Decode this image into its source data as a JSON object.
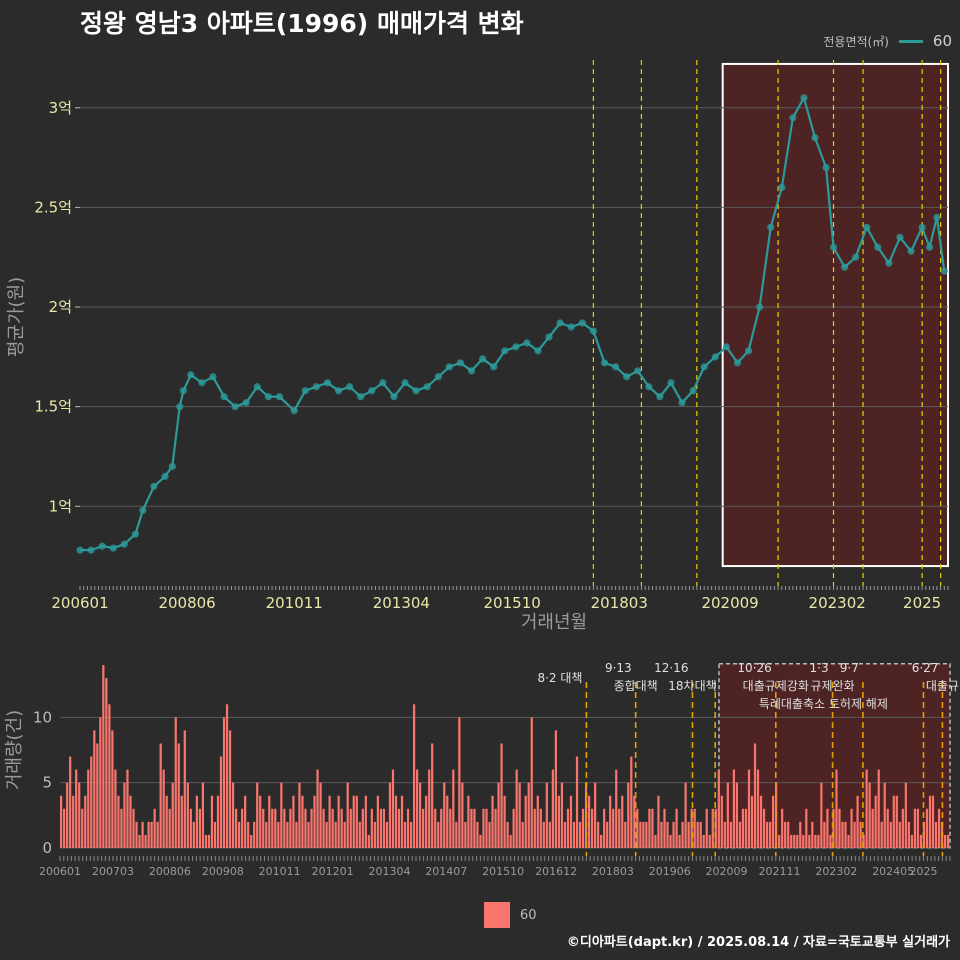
{
  "title": "정왕 영남3 아파트(1996) 매매가격 변화",
  "legend": {
    "title": "전용면적(㎡)",
    "series_label": "60"
  },
  "credit": "©디아파트(dapt.kr) / 2025.08.14 / 자료=국토교통부 실거래가",
  "colors": {
    "price": "#2d9a9a",
    "volume": "#f8766d",
    "policy": "#e6d200",
    "policy_bottom": "#e69f00",
    "highlight_fill": "#5a2222",
    "background": "#2b2b2b",
    "grid": "#5a5a5a"
  },
  "chart_data": [
    {
      "type": "line",
      "panel": "price",
      "xlabel": "거래년월",
      "ylabel": "평균가(원)",
      "x_ticks": [
        "200601",
        "200806",
        "201011",
        "201304",
        "201510",
        "201803",
        "202009",
        "202302",
        "2025"
      ],
      "y_ticks": [
        {
          "value": 1.0,
          "label": "1억"
        },
        {
          "value": 1.5,
          "label": "1.5억"
        },
        {
          "value": 2.0,
          "label": "2억"
        },
        {
          "value": 2.5,
          "label": "2.5억"
        },
        {
          "value": 3.0,
          "label": "3억"
        }
      ],
      "xlim": [
        "2006-01",
        "2025-08"
      ],
      "ylim": [
        0.6,
        3.3
      ],
      "y_unit": "억",
      "highlight": {
        "from": "2020-07",
        "to": "2025-08",
        "ymin": 0.7,
        "ymax": 3.22
      },
      "policy_lines": [
        "2017-08",
        "2018-09",
        "2019-12",
        "2021-10",
        "2023-01",
        "2023-09",
        "2025-01",
        "2025-06"
      ],
      "series": [
        {
          "name": "60",
          "points": [
            [
              "2006-01",
              0.78
            ],
            [
              "2006-04",
              0.78
            ],
            [
              "2006-07",
              0.8
            ],
            [
              "2006-10",
              0.79
            ],
            [
              "2007-01",
              0.81
            ],
            [
              "2007-04",
              0.86
            ],
            [
              "2007-06",
              0.98
            ],
            [
              "2007-09",
              1.1
            ],
            [
              "2007-12",
              1.15
            ],
            [
              "2008-02",
              1.2
            ],
            [
              "2008-04",
              1.5
            ],
            [
              "2008-05",
              1.58
            ],
            [
              "2008-07",
              1.66
            ],
            [
              "2008-10",
              1.62
            ],
            [
              "2009-01",
              1.65
            ],
            [
              "2009-04",
              1.55
            ],
            [
              "2009-07",
              1.5
            ],
            [
              "2009-10",
              1.52
            ],
            [
              "2010-01",
              1.6
            ],
            [
              "2010-04",
              1.55
            ],
            [
              "2010-07",
              1.55
            ],
            [
              "2010-11",
              1.48
            ],
            [
              "2011-02",
              1.58
            ],
            [
              "2011-05",
              1.6
            ],
            [
              "2011-08",
              1.62
            ],
            [
              "2011-11",
              1.58
            ],
            [
              "2012-02",
              1.6
            ],
            [
              "2012-05",
              1.55
            ],
            [
              "2012-08",
              1.58
            ],
            [
              "2012-11",
              1.62
            ],
            [
              "2013-02",
              1.55
            ],
            [
              "2013-05",
              1.62
            ],
            [
              "2013-08",
              1.58
            ],
            [
              "2013-11",
              1.6
            ],
            [
              "2014-02",
              1.65
            ],
            [
              "2014-05",
              1.7
            ],
            [
              "2014-08",
              1.72
            ],
            [
              "2014-11",
              1.68
            ],
            [
              "2015-02",
              1.74
            ],
            [
              "2015-05",
              1.7
            ],
            [
              "2015-08",
              1.78
            ],
            [
              "2015-11",
              1.8
            ],
            [
              "2016-02",
              1.82
            ],
            [
              "2016-05",
              1.78
            ],
            [
              "2016-08",
              1.85
            ],
            [
              "2016-11",
              1.92
            ],
            [
              "2017-02",
              1.9
            ],
            [
              "2017-05",
              1.92
            ],
            [
              "2017-08",
              1.88
            ],
            [
              "2017-11",
              1.72
            ],
            [
              "2018-02",
              1.7
            ],
            [
              "2018-05",
              1.65
            ],
            [
              "2018-08",
              1.68
            ],
            [
              "2018-11",
              1.6
            ],
            [
              "2019-02",
              1.55
            ],
            [
              "2019-05",
              1.62
            ],
            [
              "2019-08",
              1.52
            ],
            [
              "2019-11",
              1.58
            ],
            [
              "2020-02",
              1.7
            ],
            [
              "2020-05",
              1.75
            ],
            [
              "2020-08",
              1.8
            ],
            [
              "2020-11",
              1.72
            ],
            [
              "2021-02",
              1.78
            ],
            [
              "2021-05",
              2.0
            ],
            [
              "2021-08",
              2.4
            ],
            [
              "2021-11",
              2.6
            ],
            [
              "2022-02",
              2.95
            ],
            [
              "2022-05",
              3.05
            ],
            [
              "2022-08",
              2.85
            ],
            [
              "2022-11",
              2.7
            ],
            [
              "2023-01",
              2.3
            ],
            [
              "2023-04",
              2.2
            ],
            [
              "2023-07",
              2.25
            ],
            [
              "2023-10",
              2.4
            ],
            [
              "2024-01",
              2.3
            ],
            [
              "2024-04",
              2.22
            ],
            [
              "2024-07",
              2.35
            ],
            [
              "2024-10",
              2.28
            ],
            [
              "2025-01",
              2.4
            ],
            [
              "2025-03",
              2.3
            ],
            [
              "2025-05",
              2.45
            ],
            [
              "2025-07",
              2.18
            ]
          ]
        }
      ]
    },
    {
      "type": "bar",
      "panel": "volume",
      "xlabel": "",
      "ylabel": "거래량(건)",
      "x_ticks": [
        "200601",
        "200703",
        "200806",
        "200908",
        "201011",
        "201201",
        "201304",
        "201407",
        "201510",
        "201612",
        "201803",
        "201906",
        "202009",
        "202111",
        "202302",
        "202405",
        "2025"
      ],
      "y_ticks": [
        0,
        5,
        10
      ],
      "ylim": [
        0,
        15
      ],
      "highlight": {
        "from": "2020-07",
        "to": "2025-08",
        "ymin": 0,
        "ymax": 14.1
      },
      "policy_lines": [
        "2017-08",
        "2018-09",
        "2019-12",
        "2020-06",
        "2021-10",
        "2023-01",
        "2023-09",
        "2025-01",
        "2025-06"
      ],
      "annotations": [
        {
          "x": "2017-08",
          "line1": "8·2 대책",
          "line2": ""
        },
        {
          "x": "2018-09",
          "line1": "9·13",
          "line2": "종합대책"
        },
        {
          "x": "2019-12",
          "line1": "12·16",
          "line2": "18차대책"
        },
        {
          "x": "2021-10",
          "line1": "10·26",
          "line2": "대출규제강화"
        },
        {
          "x": "2023-01",
          "line1": "1·3",
          "line2": "규제완화"
        },
        {
          "x": "2023-09",
          "line1": "9·7",
          "line2": ""
        },
        {
          "x": "2023-09",
          "line1": "",
          "line2": "특례대출축소 토허제 해제"
        },
        {
          "x": "2025-06",
          "line1": "6·27",
          "line2": "대출규"
        }
      ],
      "series": [
        {
          "name": "60",
          "values": [
            4,
            3,
            5,
            7,
            4,
            6,
            5,
            3,
            4,
            6,
            7,
            9,
            8,
            10,
            14,
            13,
            11,
            9,
            6,
            4,
            3,
            5,
            6,
            4,
            3,
            2,
            1,
            2,
            1,
            2,
            2,
            3,
            2,
            8,
            6,
            4,
            3,
            5,
            10,
            8,
            4,
            9,
            5,
            3,
            2,
            4,
            3,
            5,
            1,
            1,
            4,
            2,
            4,
            7,
            10,
            11,
            9,
            5,
            3,
            2,
            3,
            4,
            2,
            1,
            2,
            5,
            4,
            3,
            2,
            4,
            3,
            3,
            2,
            5,
            3,
            2,
            3,
            4,
            2,
            5,
            4,
            3,
            2,
            3,
            4,
            6,
            5,
            3,
            2,
            4,
            3,
            2,
            4,
            3,
            2,
            5,
            3,
            4,
            4,
            2,
            3,
            4,
            1,
            3,
            2,
            4,
            3,
            3,
            2,
            5,
            6,
            4,
            3,
            4,
            2,
            3,
            2,
            11,
            6,
            5,
            3,
            4,
            6,
            8,
            3,
            2,
            3,
            5,
            4,
            3,
            6,
            2,
            10,
            5,
            2,
            4,
            3,
            3,
            2,
            1,
            3,
            3,
            2,
            4,
            3,
            5,
            8,
            4,
            2,
            1,
            3,
            6,
            5,
            2,
            4,
            5,
            10,
            3,
            4,
            3,
            2,
            5,
            2,
            6,
            9,
            4,
            5,
            2,
            3,
            4,
            2,
            7,
            2,
            3,
            5,
            4,
            3,
            5,
            2,
            1,
            3,
            2,
            4,
            3,
            6,
            3,
            4,
            2,
            5,
            7,
            4,
            3,
            2,
            2,
            2,
            3,
            3,
            1,
            4,
            2,
            3,
            2,
            1,
            2,
            3,
            1,
            2,
            5,
            2,
            3,
            3,
            2,
            2,
            1,
            3,
            1,
            3,
            3,
            6,
            4,
            2,
            5,
            2,
            6,
            5,
            2,
            3,
            3,
            6,
            4,
            8,
            6,
            4,
            3,
            2,
            2,
            4,
            5,
            1,
            3,
            2,
            2,
            1,
            1,
            1,
            2,
            1,
            3,
            1,
            2,
            1,
            1,
            5,
            2,
            3,
            1,
            3,
            6,
            3,
            2,
            2,
            1,
            3,
            2,
            4,
            2,
            1,
            6,
            5,
            3,
            4,
            6,
            2,
            5,
            3,
            2,
            4,
            4,
            2,
            3,
            5,
            2,
            1,
            3,
            3,
            1,
            2,
            3,
            4,
            4,
            2,
            3,
            2,
            1,
            1
          ]
        }
      ]
    }
  ]
}
